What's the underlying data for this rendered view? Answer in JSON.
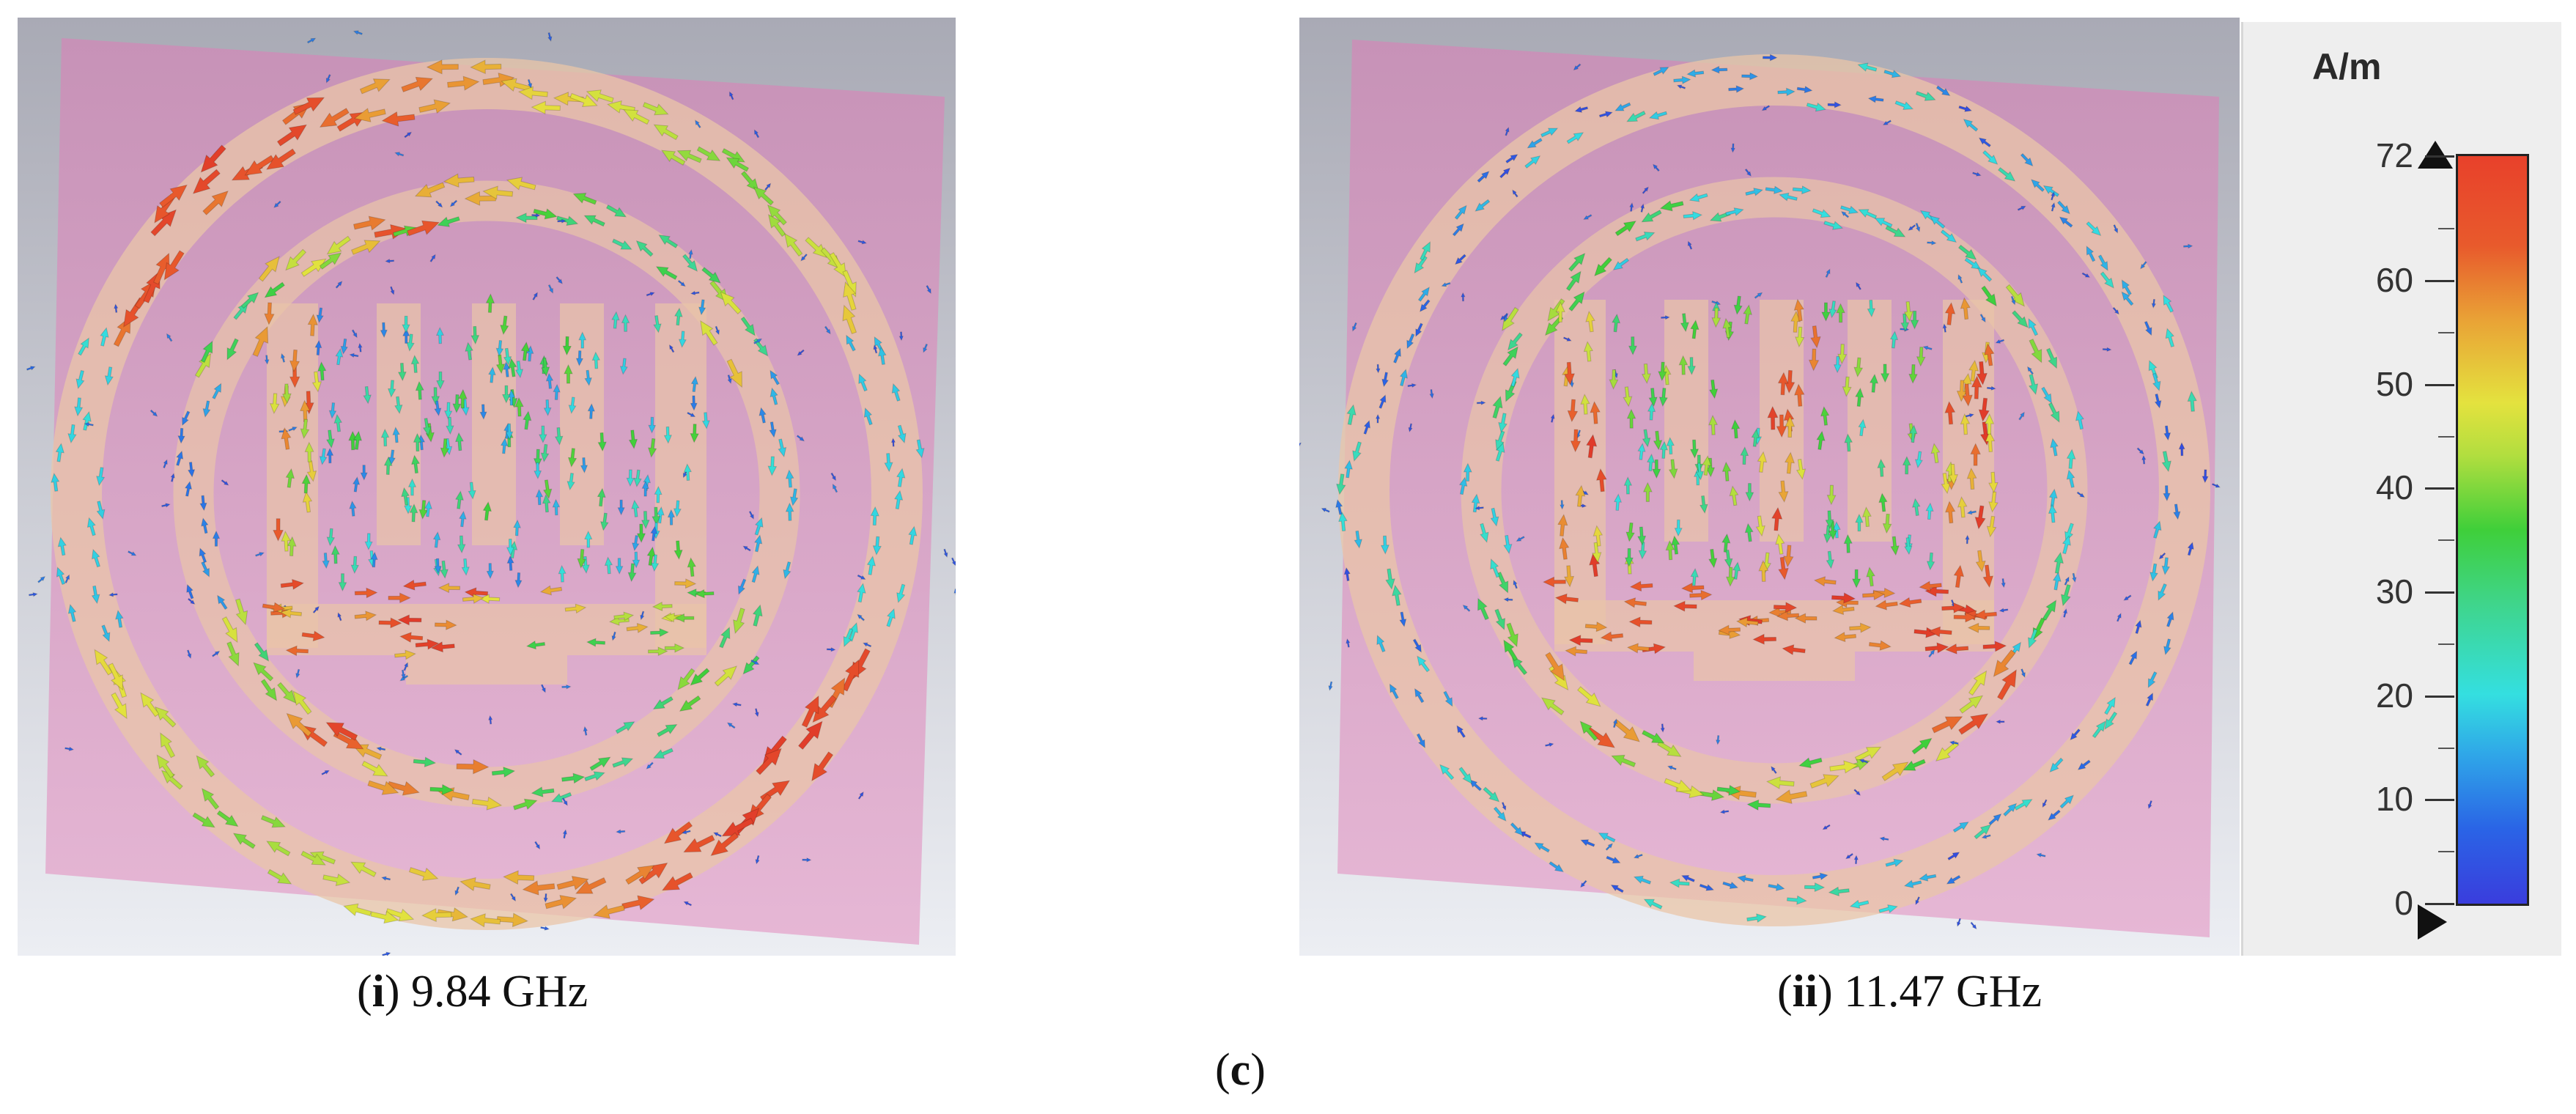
{
  "panels": [
    {
      "id": "i",
      "roman": "i",
      "frequency": "9.84 GHz",
      "mode": "outer-ring"
    },
    {
      "id": "ii",
      "roman": "ii",
      "frequency": "11.47 GHz",
      "mode": "inner-patch"
    }
  ],
  "figure_label": "c",
  "legend": {
    "unit": "A/m",
    "min": 0,
    "max": 72,
    "ticks": [
      "72",
      "60",
      "50",
      "40",
      "30",
      "20",
      "10",
      "0"
    ],
    "colors": {
      "high": "#e8412b",
      "mid": "#3fcf3a",
      "low": "#3a3ddd"
    }
  },
  "colors": {
    "background_top": "#a9aab5",
    "background_bottom": "#eceef3",
    "substrate": "#d9a0c9",
    "copper": "#eac5a8"
  }
}
